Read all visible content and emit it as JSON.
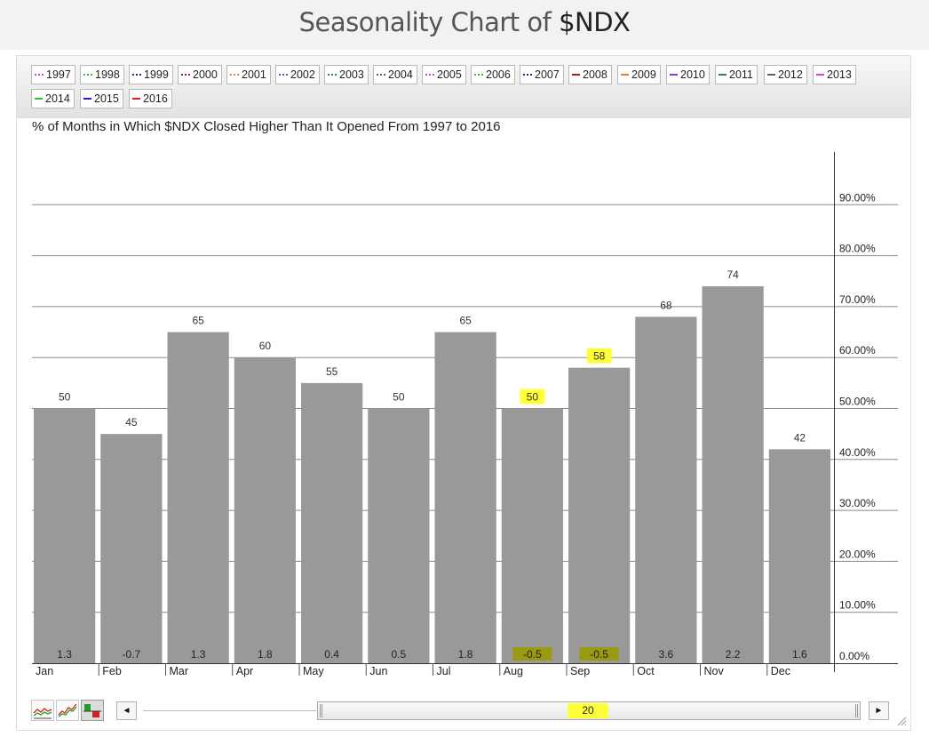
{
  "page": {
    "title_prefix": "Seasonality Chart of ",
    "title_ticker": "$NDX"
  },
  "legend": {
    "items": [
      {
        "label": "1997",
        "color": "#e040e0",
        "style": "dotted"
      },
      {
        "label": "1998",
        "color": "#30c030",
        "style": "dotted"
      },
      {
        "label": "1999",
        "color": "#2020a0",
        "style": "dotted"
      },
      {
        "label": "2000",
        "color": "#a02020",
        "style": "dotted"
      },
      {
        "label": "2001",
        "color": "#f08020",
        "style": "dotted"
      },
      {
        "label": "2002",
        "color": "#8040d0",
        "style": "dotted"
      },
      {
        "label": "2003",
        "color": "#208080",
        "style": "dotted"
      },
      {
        "label": "2004",
        "color": "#606060",
        "style": "dotted"
      },
      {
        "label": "2005",
        "color": "#e040e0",
        "style": "dotted"
      },
      {
        "label": "2006",
        "color": "#30c030",
        "style": "dotted"
      },
      {
        "label": "2007",
        "color": "#2020a0",
        "style": "dotted"
      },
      {
        "label": "2008",
        "color": "#a02020",
        "style": "solid"
      },
      {
        "label": "2009",
        "color": "#f08020",
        "style": "solid"
      },
      {
        "label": "2010",
        "color": "#8040d0",
        "style": "solid"
      },
      {
        "label": "2011",
        "color": "#208080",
        "style": "solid"
      },
      {
        "label": "2012",
        "color": "#606060",
        "style": "solid"
      },
      {
        "label": "2013",
        "color": "#e040e0",
        "style": "solid"
      },
      {
        "label": "2014",
        "color": "#30c030",
        "style": "solid"
      },
      {
        "label": "2015",
        "color": "#2020c0",
        "style": "solid"
      },
      {
        "label": "2016",
        "color": "#e02020",
        "style": "solid"
      }
    ]
  },
  "scroller": {
    "value": "20",
    "left_arrow": "◄",
    "right_arrow": "►"
  },
  "highlight_color": "#ffff3a",
  "bar_color": "#999999",
  "chart_data": {
    "type": "bar",
    "title": "% of Months in Which $NDX Closed Higher Than It Opened From 1997 to 2016",
    "categories": [
      "Jan",
      "Feb",
      "Mar",
      "Apr",
      "May",
      "Jun",
      "Jul",
      "Aug",
      "Sep",
      "Oct",
      "Nov",
      "Dec"
    ],
    "values": [
      50,
      45,
      65,
      60,
      55,
      50,
      65,
      50,
      58,
      68,
      74,
      42
    ],
    "value_labels": [
      "50",
      "45",
      "65",
      "60",
      "55",
      "50",
      "65",
      "50",
      "58",
      "68",
      "74",
      "42"
    ],
    "avg_change_labels": [
      "1.3",
      "-0.7",
      "1.3",
      "1.8",
      "0.4",
      "0.5",
      "1.8",
      "-0.5",
      "-0.5",
      "3.6",
      "2.2",
      "1.6"
    ],
    "highlighted_value_categories": [
      "Aug",
      "Sep"
    ],
    "highlighted_change_categories": [
      "Aug",
      "Sep"
    ],
    "y_ticks": [
      0,
      10,
      20,
      30,
      40,
      50,
      60,
      70,
      80,
      90
    ],
    "y_tick_labels": [
      "0.00%",
      "10.00%",
      "20.00%",
      "30.00%",
      "40.00%",
      "50.00%",
      "60.00%",
      "70.00%",
      "80.00%",
      "90.00%"
    ],
    "ylim": [
      0,
      100
    ],
    "y_axis_side": "right",
    "grid": true,
    "xlabel": "",
    "ylabel": ""
  }
}
